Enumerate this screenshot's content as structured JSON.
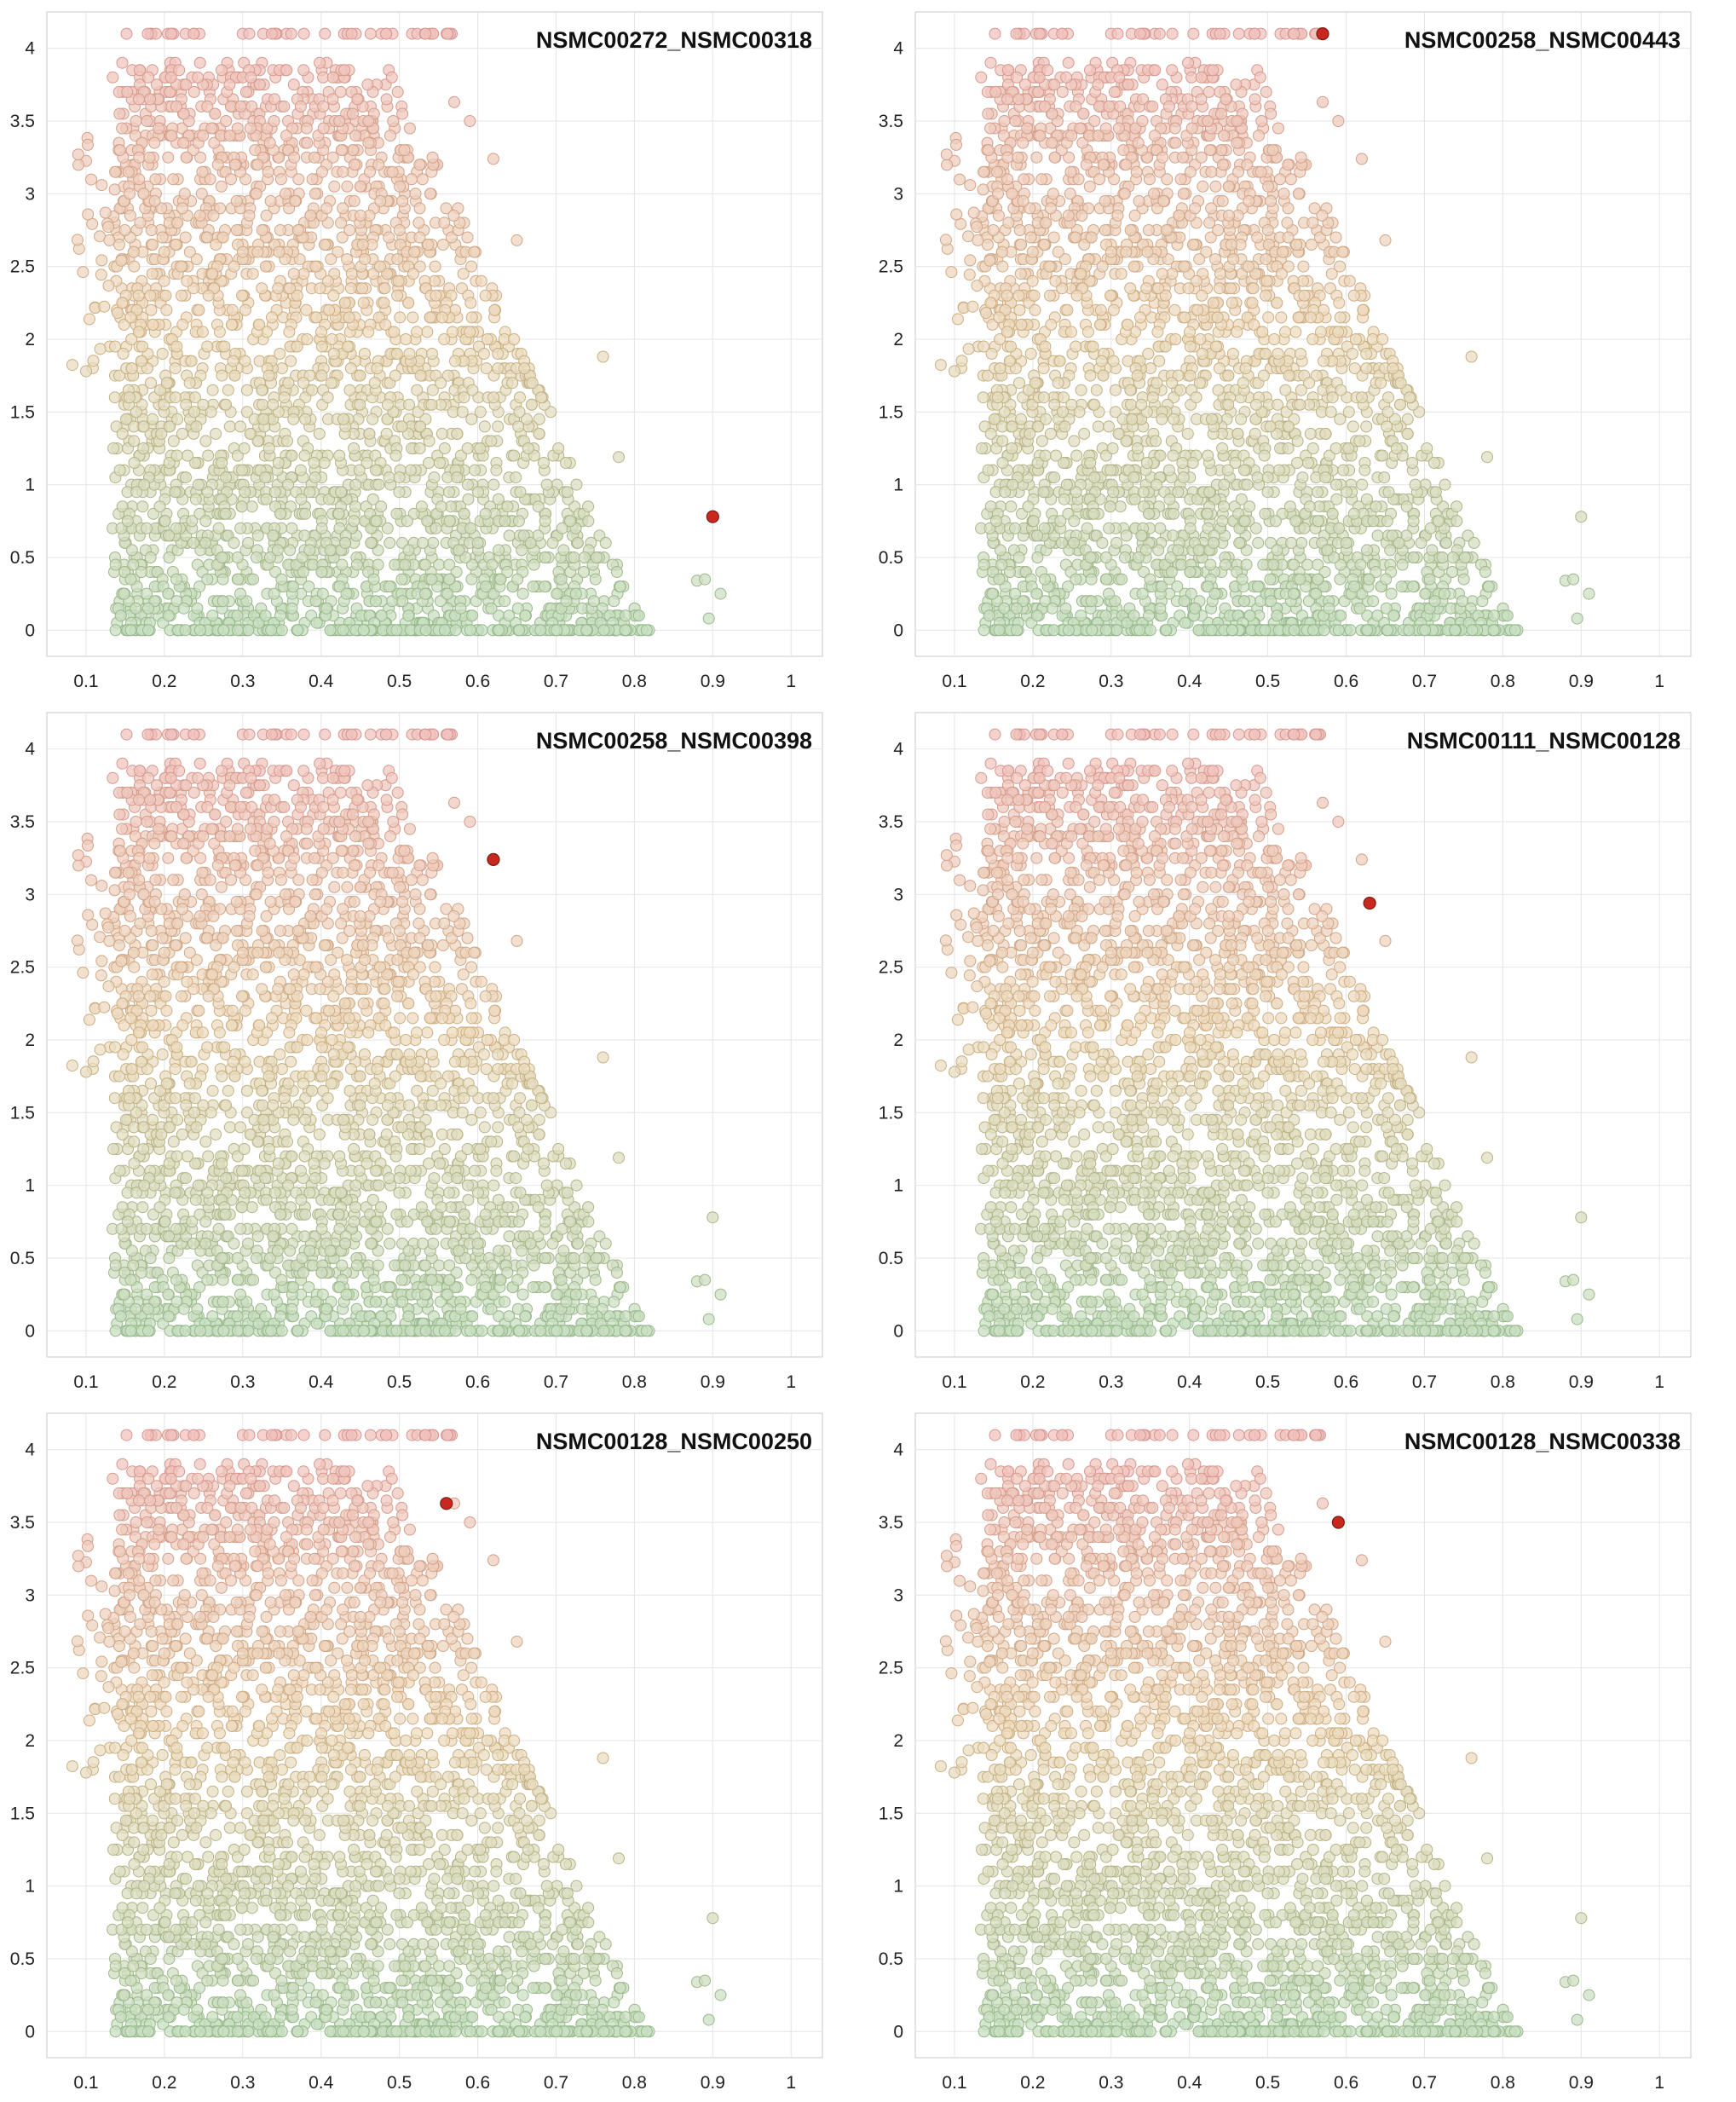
{
  "chart_data": [
    {
      "type": "scatter",
      "title": "NSMC00272_NSMC00318",
      "xticks": [
        "0.1",
        "0.2",
        "0.3",
        "0.4",
        "0.5",
        "0.6",
        "0.7",
        "0.8",
        "0.9",
        "1"
      ],
      "yticks": [
        "0",
        "0.5",
        "1",
        "1.5",
        "2",
        "2.5",
        "3",
        "3.5",
        "4"
      ],
      "xlim": [
        0.05,
        1.04
      ],
      "ylim": [
        -0.18,
        4.25
      ],
      "grid": true,
      "highlight": {
        "x": 0.9,
        "y": 0.78,
        "color": "#c8281e"
      }
    },
    {
      "type": "scatter",
      "title": "NSMC00258_NSMC00443",
      "xticks": [
        "0.1",
        "0.2",
        "0.3",
        "0.4",
        "0.5",
        "0.6",
        "0.7",
        "0.8",
        "0.9",
        "1"
      ],
      "yticks": [
        "0",
        "0.5",
        "1",
        "1.5",
        "2",
        "2.5",
        "3",
        "3.5",
        "4"
      ],
      "xlim": [
        0.05,
        1.04
      ],
      "ylim": [
        -0.18,
        4.25
      ],
      "grid": true,
      "highlight": {
        "x": 0.57,
        "y": 4.1,
        "color": "#c8281e"
      }
    },
    {
      "type": "scatter",
      "title": "NSMC00258_NSMC00398",
      "xticks": [
        "0.1",
        "0.2",
        "0.3",
        "0.4",
        "0.5",
        "0.6",
        "0.7",
        "0.8",
        "0.9",
        "1"
      ],
      "yticks": [
        "0",
        "0.5",
        "1",
        "1.5",
        "2",
        "2.5",
        "3",
        "3.5",
        "4"
      ],
      "xlim": [
        0.05,
        1.04
      ],
      "ylim": [
        -0.18,
        4.25
      ],
      "grid": true,
      "highlight": {
        "x": 0.62,
        "y": 3.24,
        "color": "#c8281e"
      }
    },
    {
      "type": "scatter",
      "title": "NSMC00111_NSMC00128",
      "xticks": [
        "0.1",
        "0.2",
        "0.3",
        "0.4",
        "0.5",
        "0.6",
        "0.7",
        "0.8",
        "0.9",
        "1"
      ],
      "yticks": [
        "0",
        "0.5",
        "1",
        "1.5",
        "2",
        "2.5",
        "3",
        "3.5",
        "4"
      ],
      "xlim": [
        0.05,
        1.04
      ],
      "ylim": [
        -0.18,
        4.25
      ],
      "grid": true,
      "highlight": {
        "x": 0.63,
        "y": 2.94,
        "color": "#c8281e"
      }
    },
    {
      "type": "scatter",
      "title": "NSMC00128_NSMC00250",
      "xticks": [
        "0.1",
        "0.2",
        "0.3",
        "0.4",
        "0.5",
        "0.6",
        "0.7",
        "0.8",
        "0.9",
        "1"
      ],
      "yticks": [
        "0",
        "0.5",
        "1",
        "1.5",
        "2",
        "2.5",
        "3",
        "3.5",
        "4"
      ],
      "xlim": [
        0.05,
        1.04
      ],
      "ylim": [
        -0.18,
        4.25
      ],
      "grid": true,
      "highlight": {
        "x": 0.56,
        "y": 3.63,
        "color": "#c8281e"
      }
    },
    {
      "type": "scatter",
      "title": "NSMC00128_NSMC00338",
      "xticks": [
        "0.1",
        "0.2",
        "0.3",
        "0.4",
        "0.5",
        "0.6",
        "0.7",
        "0.8",
        "0.9",
        "1"
      ],
      "yticks": [
        "0",
        "0.5",
        "1",
        "1.5",
        "2",
        "2.5",
        "3",
        "3.5",
        "4"
      ],
      "xlim": [
        0.05,
        1.04
      ],
      "ylim": [
        -0.18,
        4.25
      ],
      "grid": true,
      "highlight": {
        "x": 0.59,
        "y": 3.5,
        "color": "#c8281e"
      }
    }
  ],
  "background_cloud": {
    "notes_hidden": false,
    "x_range": [
      0.08,
      0.92
    ],
    "y_range": [
      0,
      4.1
    ],
    "color_low": "#c9dfc3",
    "color_mid": "#eddcc0",
    "color_high": "#f0c3bd",
    "outliers": [
      {
        "x": 0.88,
        "y": 0.34
      },
      {
        "x": 0.89,
        "y": 0.35
      },
      {
        "x": 0.9,
        "y": 0.78
      },
      {
        "x": 0.91,
        "y": 0.25
      },
      {
        "x": 0.895,
        "y": 0.08
      },
      {
        "x": 0.76,
        "y": 1.88
      },
      {
        "x": 0.78,
        "y": 1.19
      },
      {
        "x": 0.57,
        "y": 3.63
      },
      {
        "x": 0.59,
        "y": 3.5
      },
      {
        "x": 0.62,
        "y": 3.24
      },
      {
        "x": 0.65,
        "y": 2.68
      },
      {
        "x": 0.09,
        "y": 3.27
      },
      {
        "x": 0.1,
        "y": 1.78
      },
      {
        "x": 0.12,
        "y": 3.06
      }
    ]
  }
}
